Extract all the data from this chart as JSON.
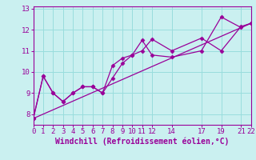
{
  "xlabel": "Windchill (Refroidissement éolien,°C)",
  "background_color": "#caf0f0",
  "grid_color": "#99dddd",
  "line_color": "#990099",
  "markersize": 2.5,
  "linewidth": 0.9,
  "series": [
    {
      "x": [
        0,
        1,
        2,
        3,
        4,
        5,
        6,
        7,
        8,
        9,
        10,
        11,
        12,
        14,
        17,
        19,
        21,
        22
      ],
      "y": [
        7.8,
        9.8,
        9.0,
        8.6,
        9.0,
        9.3,
        9.3,
        9.0,
        9.7,
        10.4,
        10.8,
        11.5,
        10.8,
        10.7,
        11.0,
        12.6,
        12.1,
        12.3
      ]
    },
    {
      "x": [
        0,
        1,
        2,
        3,
        4,
        5,
        6,
        7,
        8,
        9,
        10,
        11,
        12,
        14,
        17,
        19,
        21,
        22
      ],
      "y": [
        7.8,
        9.8,
        9.0,
        8.6,
        9.0,
        9.3,
        9.3,
        9.0,
        10.3,
        10.65,
        10.8,
        11.0,
        11.55,
        11.0,
        11.6,
        11.0,
        12.15,
        12.3
      ]
    },
    {
      "x": [
        0,
        22
      ],
      "y": [
        7.8,
        12.3
      ]
    }
  ],
  "xlim": [
    0,
    22
  ],
  "ylim": [
    7.5,
    13.1
  ],
  "xticks": [
    0,
    1,
    2,
    3,
    4,
    5,
    6,
    7,
    8,
    9,
    10,
    11,
    12,
    14,
    17,
    19,
    21,
    22
  ],
  "yticks": [
    8,
    9,
    10,
    11,
    12,
    13
  ],
  "tick_fontsize": 6.5,
  "xlabel_fontsize": 7.0
}
